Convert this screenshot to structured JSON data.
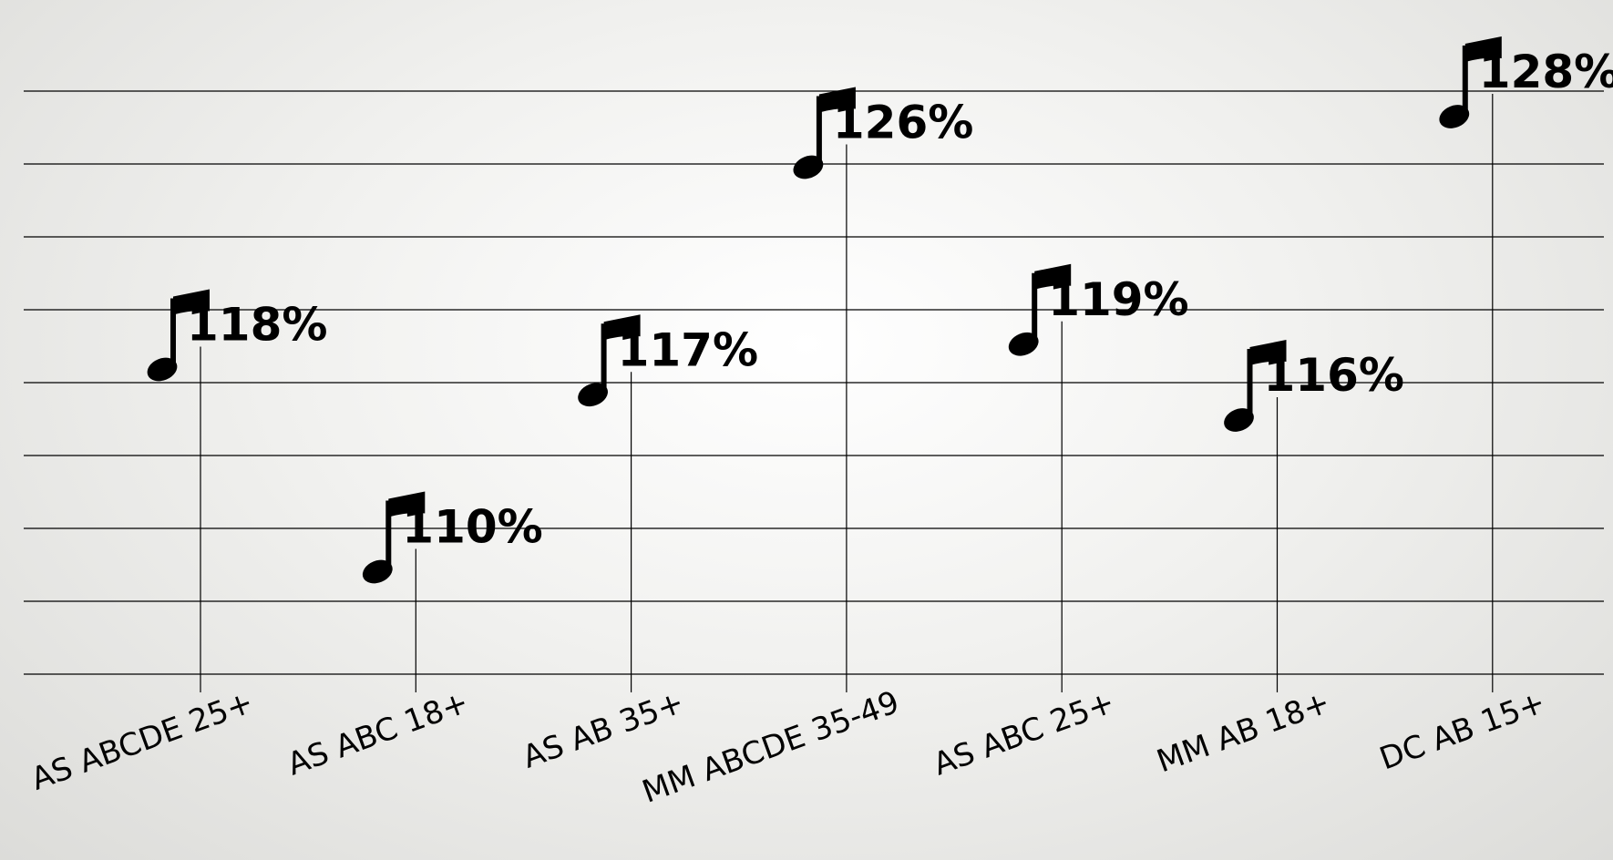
{
  "chart_data": {
    "type": "scatter",
    "categories": [
      "AS ABCDE 25+",
      "AS ABC 18+",
      "AS AB 35+",
      "MM ABCDE 35-49",
      "AS ABC 25+",
      "MM AB 18+",
      "DC AB 15+"
    ],
    "values": [
      118,
      110,
      117,
      126,
      119,
      116,
      128
    ],
    "value_labels": [
      "118%",
      "110%",
      "117%",
      "126%",
      "119%",
      "116%",
      "128%"
    ],
    "marker": "music-note-icon",
    "grid": true,
    "ylim": [
      100,
      129
    ]
  }
}
